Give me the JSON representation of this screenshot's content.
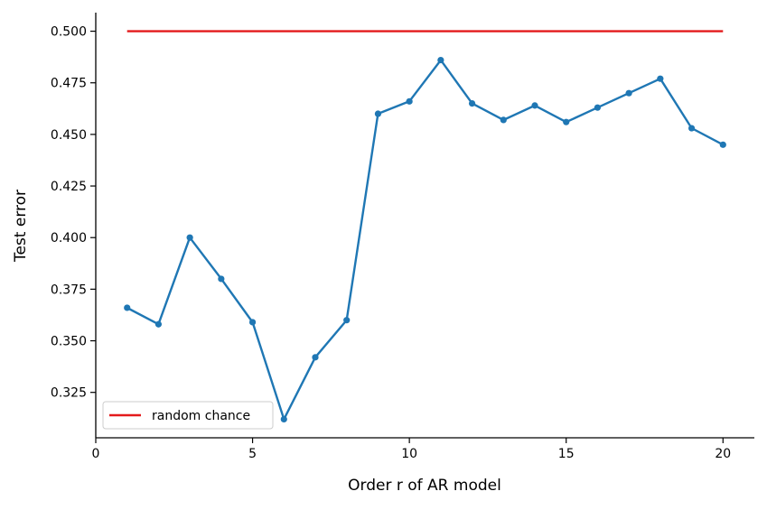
{
  "chart_data": {
    "type": "line",
    "title": "",
    "xlabel": "Order r of AR model",
    "ylabel": "Test error",
    "xlim": [
      0,
      21
    ],
    "ylim": [
      0.303,
      0.509
    ],
    "xticks": [
      0,
      5,
      10,
      15,
      20
    ],
    "xtick_labels": [
      "0",
      "5",
      "10",
      "15",
      "20"
    ],
    "yticks": [
      0.325,
      0.35,
      0.375,
      0.4,
      0.425,
      0.45,
      0.475,
      0.5
    ],
    "ytick_labels": [
      "0.325",
      "0.350",
      "0.375",
      "0.400",
      "0.425",
      "0.450",
      "0.475",
      "0.500"
    ],
    "grid": false,
    "legend": {
      "position": "lower-left",
      "entries": [
        "random chance"
      ]
    },
    "x": [
      1,
      2,
      3,
      4,
      5,
      6,
      7,
      8,
      9,
      10,
      11,
      12,
      13,
      14,
      15,
      16,
      17,
      18,
      19,
      20
    ],
    "series": [
      {
        "values": [
          0.366,
          0.358,
          0.4,
          0.38,
          0.359,
          0.312,
          0.342,
          0.36,
          0.46,
          0.466,
          0.486,
          0.465,
          0.457,
          0.464,
          0.456,
          0.463,
          0.47,
          0.477,
          0.453,
          0.445
        ],
        "color": "#1f77b4",
        "markers": true
      },
      {
        "name": "random chance",
        "values": [
          0.5,
          0.5,
          0.5,
          0.5,
          0.5,
          0.5,
          0.5,
          0.5,
          0.5,
          0.5,
          0.5,
          0.5,
          0.5,
          0.5,
          0.5,
          0.5,
          0.5,
          0.5,
          0.5,
          0.5
        ],
        "color": "#e41a1c",
        "markers": false
      }
    ]
  }
}
